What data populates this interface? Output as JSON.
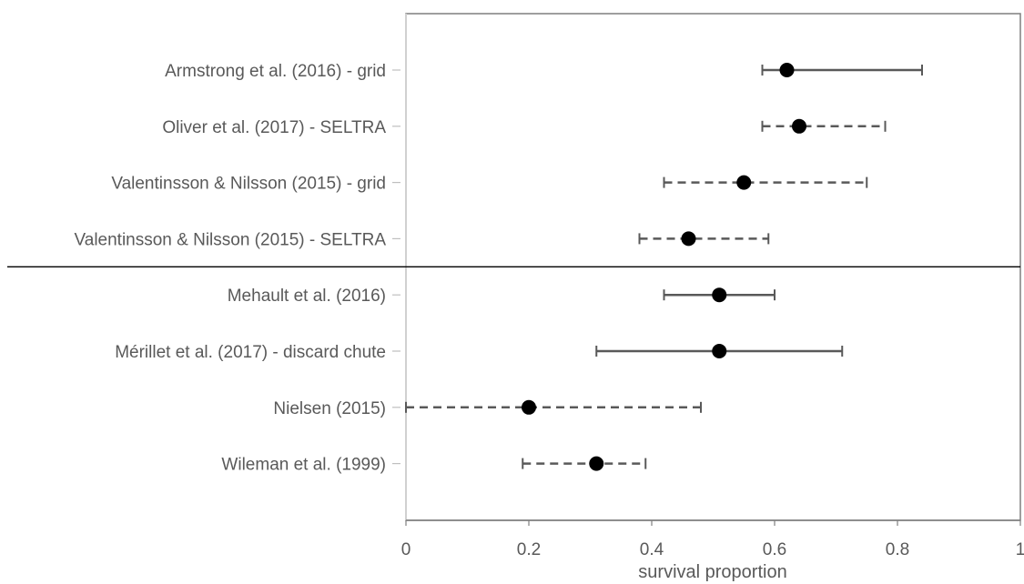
{
  "chart_data": {
    "type": "forest",
    "xlabel": "survival proportion",
    "xlim": [
      0,
      1
    ],
    "xticks": [
      0,
      0.2,
      0.4,
      0.6,
      0.8,
      1
    ],
    "xtick_labels": [
      "0",
      "0.2",
      "0.4",
      "0.6",
      "0.8",
      "1"
    ],
    "grid": false,
    "point_color": "#000000",
    "line_color": "#595959",
    "group_divider_after_index": 3,
    "studies": [
      {
        "label": "Armstrong et al. (2016) - grid",
        "estimate": 0.62,
        "lower": 0.58,
        "upper": 0.84,
        "line_style": "solid"
      },
      {
        "label": "Oliver et al. (2017) - SELTRA",
        "estimate": 0.64,
        "lower": 0.58,
        "upper": 0.78,
        "line_style": "dashed"
      },
      {
        "label": "Valentinsson & Nilsson (2015) - grid",
        "estimate": 0.55,
        "lower": 0.42,
        "upper": 0.75,
        "line_style": "dashed"
      },
      {
        "label": "Valentinsson & Nilsson (2015) - SELTRA",
        "estimate": 0.46,
        "lower": 0.38,
        "upper": 0.59,
        "line_style": "dashed"
      },
      {
        "label": "Mehault et al. (2016)",
        "estimate": 0.51,
        "lower": 0.42,
        "upper": 0.6,
        "line_style": "solid"
      },
      {
        "label": "Mérillet et al. (2017) - discard chute",
        "estimate": 0.51,
        "lower": 0.31,
        "upper": 0.71,
        "line_style": "solid"
      },
      {
        "label": "Nielsen (2015)",
        "estimate": 0.2,
        "lower": 0.0,
        "upper": 0.48,
        "line_style": "dashed"
      },
      {
        "label": "Wileman et al. (1999)",
        "estimate": 0.31,
        "lower": 0.19,
        "upper": 0.39,
        "line_style": "dashed"
      }
    ]
  }
}
